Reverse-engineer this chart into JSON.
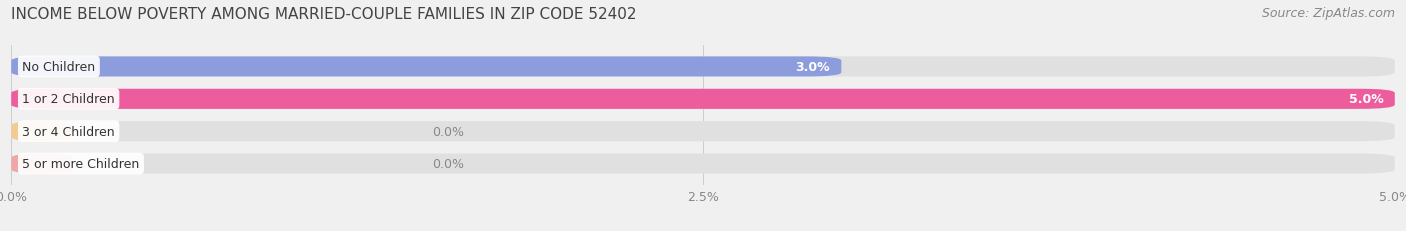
{
  "title": "INCOME BELOW POVERTY AMONG MARRIED-COUPLE FAMILIES IN ZIP CODE 52402",
  "source": "Source: ZipAtlas.com",
  "categories": [
    "No Children",
    "1 or 2 Children",
    "3 or 4 Children",
    "5 or more Children"
  ],
  "values": [
    3.0,
    5.0,
    0.0,
    0.0
  ],
  "bar_colors": [
    "#8899dd",
    "#ee5599",
    "#f5c88a",
    "#f0a0a0"
  ],
  "xlim": [
    0,
    5.0
  ],
  "xticks": [
    0.0,
    2.5,
    5.0
  ],
  "xticklabels": [
    "0.0%",
    "2.5%",
    "5.0%"
  ],
  "background_color": "#f0f0f0",
  "track_color": "#e0e0e0",
  "bar_height": 0.62,
  "title_fontsize": 11,
  "label_fontsize": 9,
  "value_fontsize": 9,
  "source_fontsize": 9,
  "value_inside_color": "#ffffff",
  "value_outside_color": "#888888",
  "label_box_color": "#ffffff"
}
